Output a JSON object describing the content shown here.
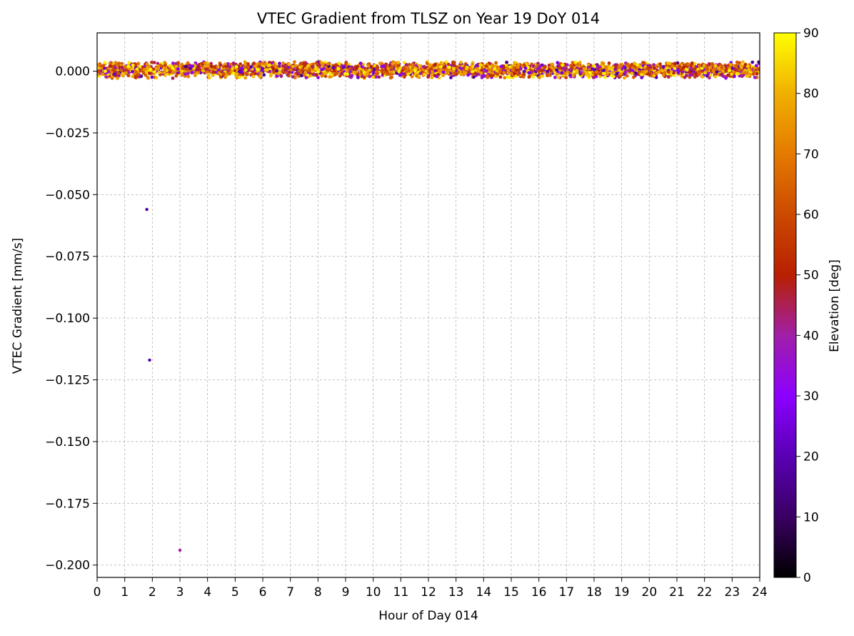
{
  "chart_data": {
    "type": "scatter",
    "title": "VTEC Gradient from TLSZ on Year 19 DoY 014",
    "xlabel": "Hour of Day 014",
    "ylabel": "VTEC Gradient [mm/s]",
    "xlim": [
      0,
      24
    ],
    "ylim": [
      -0.205,
      0.0155
    ],
    "x_ticks": [
      0,
      1,
      2,
      3,
      4,
      5,
      6,
      7,
      8,
      9,
      10,
      11,
      12,
      13,
      14,
      15,
      16,
      17,
      18,
      19,
      20,
      21,
      22,
      23,
      24
    ],
    "y_ticks": [
      0.0,
      -0.025,
      -0.05,
      -0.075,
      -0.1,
      -0.125,
      -0.15,
      -0.175,
      -0.2
    ],
    "y_tick_labels": [
      "0.000",
      "−0.025",
      "−0.050",
      "−0.075",
      "−0.100",
      "−0.125",
      "−0.150",
      "−0.175",
      "−0.200"
    ],
    "grid": true,
    "colorbar": {
      "label": "Elevation [deg]",
      "range": [
        0,
        90
      ],
      "ticks": [
        0,
        10,
        20,
        30,
        40,
        50,
        60,
        70,
        80,
        90
      ],
      "colormap": "gnuplot",
      "colors": [
        "#000000",
        "#3a0063",
        "#5a00b5",
        "#8c00ff",
        "#a01fa8",
        "#b82000",
        "#cc4a00",
        "#e57a00",
        "#f0b000",
        "#ffff00"
      ]
    },
    "band": {
      "description_values": "dense band of near-zero gradients across the full day",
      "x_range": [
        0,
        24
      ],
      "y_range": [
        -0.003,
        0.004
      ],
      "elevation_range": [
        10,
        90
      ]
    },
    "outliers": [
      {
        "x": 1.8,
        "y": -0.056,
        "elevation": 18
      },
      {
        "x": 1.9,
        "y": -0.117,
        "elevation": 18
      },
      {
        "x": 3.0,
        "y": -0.194,
        "elevation": 40
      }
    ]
  }
}
